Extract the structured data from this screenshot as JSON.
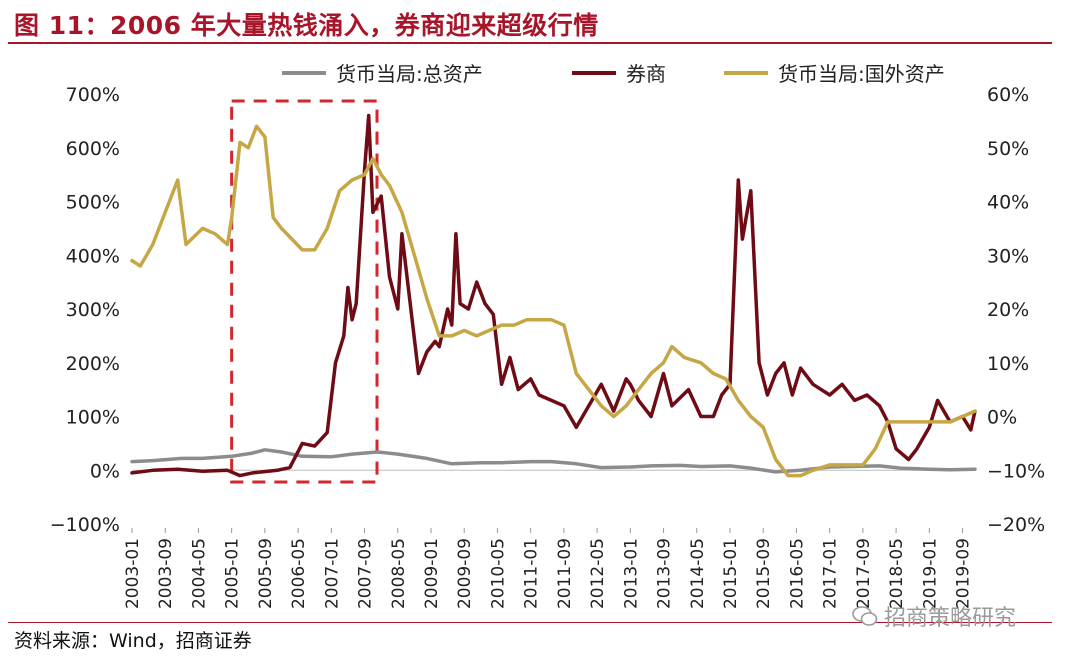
{
  "header": {
    "title": "图 11：2006 年大量热钱涌入，券商迎来超级行情"
  },
  "footer": {
    "source": "资料来源：Wind，招商证券",
    "watermark": "招商策略研究"
  },
  "colors": {
    "title": "#A8152A",
    "total_assets": "#8C8C8C",
    "broker": "#6E0B14",
    "foreign_assets": "#C6A745",
    "highlight_box": "#D4262E"
  },
  "chart_data": {
    "type": "line",
    "left_axis": {
      "ticks": [
        "700%",
        "600%",
        "500%",
        "400%",
        "300%",
        "200%",
        "100%",
        "0%",
        "−100%"
      ],
      "ylim": [
        -100,
        700
      ]
    },
    "right_axis": {
      "ticks": [
        "60%",
        "50%",
        "40%",
        "30%",
        "20%",
        "10%",
        "0%",
        "−10%",
        "−20%"
      ],
      "ylim": [
        -20,
        60
      ]
    },
    "x_tick_labels": [
      "2003-01",
      "2003-09",
      "2004-05",
      "2005-01",
      "2005-09",
      "2006-05",
      "2007-01",
      "2007-09",
      "2008-05",
      "2009-01",
      "2009-09",
      "2010-05",
      "2011-01",
      "2011-09",
      "2012-05",
      "2013-01",
      "2013-09",
      "2014-05",
      "2015-01",
      "2015-09",
      "2016-05",
      "2017-01",
      "2017-09",
      "2018-05",
      "2019-01",
      "2019-09"
    ],
    "x_range": [
      "2003-01",
      "2019-12"
    ],
    "legend": [
      "货币当局:总资产",
      "券商",
      "货币当局:国外资产"
    ],
    "legend_position": "top",
    "highlight_period": [
      "2005-01",
      "2007-12"
    ],
    "series": [
      {
        "name": "货币当局:总资产",
        "axis": "left",
        "points": [
          [
            "2003-01",
            16
          ],
          [
            "2003-06",
            18
          ],
          [
            "2004-01",
            22
          ],
          [
            "2004-06",
            22
          ],
          [
            "2005-01",
            26
          ],
          [
            "2005-06",
            32
          ],
          [
            "2005-09",
            38
          ],
          [
            "2006-01",
            34
          ],
          [
            "2006-06",
            26
          ],
          [
            "2007-01",
            25
          ],
          [
            "2007-06",
            30
          ],
          [
            "2007-12",
            34
          ],
          [
            "2008-05",
            30
          ],
          [
            "2008-12",
            22
          ],
          [
            "2009-06",
            12
          ],
          [
            "2010-01",
            14
          ],
          [
            "2010-06",
            14
          ],
          [
            "2011-01",
            16
          ],
          [
            "2011-06",
            16
          ],
          [
            "2011-12",
            12
          ],
          [
            "2012-06",
            5
          ],
          [
            "2013-01",
            6
          ],
          [
            "2013-06",
            8
          ],
          [
            "2014-01",
            9
          ],
          [
            "2014-06",
            7
          ],
          [
            "2015-01",
            8
          ],
          [
            "2015-06",
            4
          ],
          [
            "2015-12",
            -3
          ],
          [
            "2016-06",
            0
          ],
          [
            "2017-01",
            6
          ],
          [
            "2017-06",
            7
          ],
          [
            "2018-01",
            8
          ],
          [
            "2018-06",
            4
          ],
          [
            "2019-01",
            2
          ],
          [
            "2019-06",
            1
          ],
          [
            "2019-12",
            2
          ]
        ]
      },
      {
        "name": "券商",
        "axis": "left",
        "points": [
          [
            "2003-01",
            -5
          ],
          [
            "2003-06",
            0
          ],
          [
            "2003-12",
            2
          ],
          [
            "2004-06",
            -2
          ],
          [
            "2004-12",
            0
          ],
          [
            "2005-03",
            -10
          ],
          [
            "2005-06",
            -5
          ],
          [
            "2005-12",
            0
          ],
          [
            "2006-03",
            5
          ],
          [
            "2006-06",
            50
          ],
          [
            "2006-09",
            45
          ],
          [
            "2006-12",
            70
          ],
          [
            "2007-02",
            200
          ],
          [
            "2007-04",
            250
          ],
          [
            "2007-05",
            340
          ],
          [
            "2007-06",
            280
          ],
          [
            "2007-07",
            310
          ],
          [
            "2007-09",
            560
          ],
          [
            "2007-10",
            660
          ],
          [
            "2007-11",
            480
          ],
          [
            "2008-01",
            510
          ],
          [
            "2008-03",
            360
          ],
          [
            "2008-05",
            300
          ],
          [
            "2008-06",
            440
          ],
          [
            "2008-08",
            310
          ],
          [
            "2008-10",
            180
          ],
          [
            "2008-12",
            220
          ],
          [
            "2009-02",
            240
          ],
          [
            "2009-03",
            230
          ],
          [
            "2009-05",
            300
          ],
          [
            "2009-06",
            270
          ],
          [
            "2009-07",
            440
          ],
          [
            "2009-08",
            310
          ],
          [
            "2009-10",
            300
          ],
          [
            "2009-12",
            350
          ],
          [
            "2010-02",
            310
          ],
          [
            "2010-04",
            290
          ],
          [
            "2010-06",
            160
          ],
          [
            "2010-08",
            210
          ],
          [
            "2010-10",
            150
          ],
          [
            "2011-01",
            170
          ],
          [
            "2011-03",
            140
          ],
          [
            "2011-06",
            130
          ],
          [
            "2011-09",
            120
          ],
          [
            "2011-12",
            80
          ],
          [
            "2012-03",
            120
          ],
          [
            "2012-06",
            160
          ],
          [
            "2012-09",
            110
          ],
          [
            "2012-12",
            170
          ],
          [
            "2013-01",
            160
          ],
          [
            "2013-03",
            130
          ],
          [
            "2013-06",
            100
          ],
          [
            "2013-09",
            180
          ],
          [
            "2013-11",
            120
          ],
          [
            "2014-03",
            150
          ],
          [
            "2014-06",
            100
          ],
          [
            "2014-09",
            100
          ],
          [
            "2014-11",
            140
          ],
          [
            "2015-01",
            160
          ],
          [
            "2015-03",
            540
          ],
          [
            "2015-04",
            430
          ],
          [
            "2015-06",
            520
          ],
          [
            "2015-08",
            200
          ],
          [
            "2015-10",
            140
          ],
          [
            "2015-12",
            180
          ],
          [
            "2016-02",
            200
          ],
          [
            "2016-04",
            140
          ],
          [
            "2016-06",
            190
          ],
          [
            "2016-09",
            160
          ],
          [
            "2017-01",
            140
          ],
          [
            "2017-04",
            160
          ],
          [
            "2017-07",
            130
          ],
          [
            "2017-10",
            140
          ],
          [
            "2018-01",
            120
          ],
          [
            "2018-03",
            90
          ],
          [
            "2018-05",
            40
          ],
          [
            "2018-08",
            20
          ],
          [
            "2018-10",
            40
          ],
          [
            "2019-01",
            80
          ],
          [
            "2019-03",
            130
          ],
          [
            "2019-06",
            90
          ],
          [
            "2019-09",
            100
          ],
          [
            "2019-11",
            75
          ],
          [
            "2019-12",
            110
          ]
        ]
      },
      {
        "name": "货币当局:国外资产",
        "axis": "right",
        "points": [
          [
            "2003-01",
            29
          ],
          [
            "2003-03",
            28
          ],
          [
            "2003-06",
            32
          ],
          [
            "2003-09",
            38
          ],
          [
            "2003-12",
            44
          ],
          [
            "2004-02",
            32
          ],
          [
            "2004-06",
            35
          ],
          [
            "2004-09",
            34
          ],
          [
            "2004-12",
            32
          ],
          [
            "2005-01",
            37
          ],
          [
            "2005-03",
            51
          ],
          [
            "2005-05",
            50
          ],
          [
            "2005-07",
            54
          ],
          [
            "2005-09",
            52
          ],
          [
            "2005-11",
            37
          ],
          [
            "2006-01",
            35
          ],
          [
            "2006-06",
            31
          ],
          [
            "2006-09",
            31
          ],
          [
            "2006-12",
            35
          ],
          [
            "2007-03",
            42
          ],
          [
            "2007-06",
            44
          ],
          [
            "2007-09",
            45
          ],
          [
            "2007-11",
            48
          ],
          [
            "2008-01",
            45
          ],
          [
            "2008-03",
            43
          ],
          [
            "2008-06",
            38
          ],
          [
            "2008-09",
            30
          ],
          [
            "2008-12",
            22
          ],
          [
            "2009-03",
            15
          ],
          [
            "2009-06",
            15
          ],
          [
            "2009-09",
            16
          ],
          [
            "2009-12",
            15
          ],
          [
            "2010-03",
            16
          ],
          [
            "2010-06",
            17
          ],
          [
            "2010-09",
            17
          ],
          [
            "2010-12",
            18
          ],
          [
            "2011-03",
            18
          ],
          [
            "2011-06",
            18
          ],
          [
            "2011-09",
            17
          ],
          [
            "2011-12",
            8
          ],
          [
            "2012-03",
            5
          ],
          [
            "2012-06",
            2
          ],
          [
            "2012-09",
            0
          ],
          [
            "2012-12",
            2
          ],
          [
            "2013-03",
            5
          ],
          [
            "2013-06",
            8
          ],
          [
            "2013-09",
            10
          ],
          [
            "2013-11",
            13
          ],
          [
            "2014-02",
            11
          ],
          [
            "2014-06",
            10
          ],
          [
            "2014-09",
            8
          ],
          [
            "2014-12",
            7
          ],
          [
            "2015-03",
            3
          ],
          [
            "2015-06",
            0
          ],
          [
            "2015-09",
            -2
          ],
          [
            "2015-12",
            -8
          ],
          [
            "2016-03",
            -11
          ],
          [
            "2016-06",
            -11
          ],
          [
            "2016-09",
            -10
          ],
          [
            "2017-01",
            -9
          ],
          [
            "2017-06",
            -9
          ],
          [
            "2017-09",
            -9
          ],
          [
            "2017-12",
            -6
          ],
          [
            "2018-03",
            -1
          ],
          [
            "2018-06",
            -1
          ],
          [
            "2018-09",
            -1
          ],
          [
            "2019-01",
            -1
          ],
          [
            "2019-06",
            -1
          ],
          [
            "2019-09",
            0
          ],
          [
            "2019-12",
            1
          ]
        ]
      }
    ]
  }
}
